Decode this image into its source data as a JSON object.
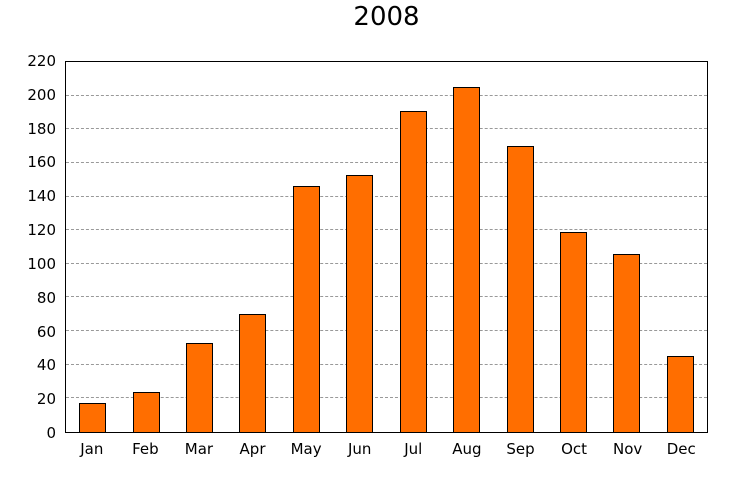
{
  "title": "2008",
  "colors": {
    "background": "#ffffff",
    "text": "#000000",
    "axis": "#000000",
    "grid": "#999999",
    "bar_fill": "#ff6e00",
    "bar_border": "#000000"
  },
  "chart_data": {
    "type": "bar",
    "title": "2008",
    "categories": [
      "Jan",
      "Feb",
      "Mar",
      "Apr",
      "May",
      "Jun",
      "Jul",
      "Aug",
      "Sep",
      "Oct",
      "Nov",
      "Dec"
    ],
    "values": [
      17,
      24,
      53,
      70,
      146,
      153,
      191,
      205,
      170,
      119,
      106,
      45
    ],
    "xlabel": "",
    "ylabel": "",
    "ylim": [
      0,
      220
    ],
    "ytick_step": 20,
    "grid": "horizontal-dashed",
    "legend": "none"
  }
}
